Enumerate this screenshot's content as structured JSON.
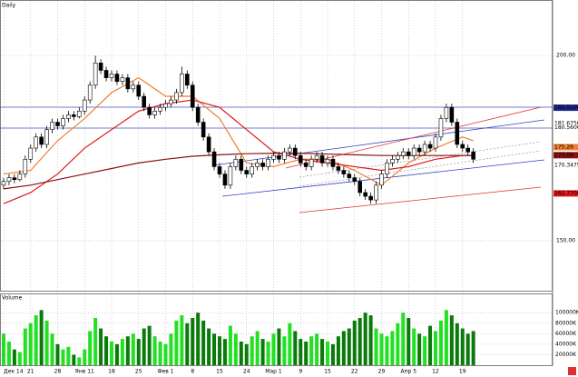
{
  "chart_data": {
    "type": "candlestick",
    "label": "Daily",
    "categories": [
      "Дек 14",
      null,
      null,
      null,
      null,
      "21",
      null,
      null,
      null,
      null,
      "28",
      null,
      null,
      null,
      null,
      "Янв 11",
      null,
      null,
      null,
      null,
      "18",
      null,
      null,
      null,
      null,
      "25",
      null,
      null,
      null,
      null,
      "Фев 1",
      null,
      null,
      null,
      null,
      "8",
      null,
      null,
      null,
      null,
      "15",
      null,
      null,
      null,
      null,
      "24",
      null,
      null,
      null,
      null,
      "Мар 1",
      null,
      null,
      null,
      null,
      "9",
      null,
      null,
      null,
      null,
      "15",
      null,
      null,
      null,
      null,
      "22",
      null,
      null,
      null,
      null,
      "29",
      null,
      null,
      null,
      null,
      "Апр 5",
      null,
      null,
      null,
      null,
      "12",
      null,
      null,
      null,
      null,
      "19",
      null,
      null
    ],
    "ohlc": [
      [
        165,
        167,
        164,
        166
      ],
      [
        166,
        168,
        165,
        167
      ],
      [
        167,
        168,
        165.5,
        166.5
      ],
      [
        166.5,
        169,
        166,
        168
      ],
      [
        168,
        173,
        167,
        172
      ],
      [
        172,
        176,
        171,
        175
      ],
      [
        175,
        179,
        174,
        178
      ],
      [
        178,
        179,
        175,
        176
      ],
      [
        176,
        181,
        175,
        180
      ],
      [
        180,
        183,
        179,
        182
      ],
      [
        182,
        183,
        180,
        181
      ],
      [
        181,
        184,
        180,
        183
      ],
      [
        183,
        185,
        182,
        184
      ],
      [
        184,
        185,
        182.5,
        183.5
      ],
      [
        183.5,
        186,
        183,
        185
      ],
      [
        185,
        189,
        184,
        188
      ],
      [
        188,
        193,
        187,
        192
      ],
      [
        192,
        200,
        191,
        198
      ],
      [
        198,
        199,
        195,
        196
      ],
      [
        196,
        197,
        193,
        194
      ],
      [
        194,
        196,
        193,
        195
      ],
      [
        195,
        196,
        192,
        193
      ],
      [
        193,
        195,
        192,
        194
      ],
      [
        194,
        195,
        190,
        191
      ],
      [
        191,
        193,
        190,
        192
      ],
      [
        192,
        193,
        188,
        189
      ],
      [
        189,
        190,
        185,
        186
      ],
      [
        186,
        187,
        183,
        184
      ],
      [
        184,
        186,
        183,
        185
      ],
      [
        185,
        187,
        184,
        186
      ],
      [
        186,
        188,
        185,
        187
      ],
      [
        187,
        189,
        186,
        188
      ],
      [
        188,
        191,
        187,
        190
      ],
      [
        190,
        197,
        189,
        195
      ],
      [
        195,
        196,
        191,
        192
      ],
      [
        192,
        193,
        185,
        186
      ],
      [
        186,
        187,
        181,
        182
      ],
      [
        182,
        183,
        177,
        178
      ],
      [
        178,
        179,
        173,
        174
      ],
      [
        174,
        175,
        169,
        170
      ],
      [
        170,
        171,
        167,
        168
      ],
      [
        168,
        169,
        164,
        165
      ],
      [
        165,
        171,
        164,
        170
      ],
      [
        170,
        173,
        169,
        172
      ],
      [
        172,
        173,
        168,
        169
      ],
      [
        169,
        170,
        167,
        168
      ],
      [
        168,
        171,
        167,
        170
      ],
      [
        170,
        172,
        169,
        171
      ],
      [
        171,
        172,
        169,
        170
      ],
      [
        170,
        173,
        169,
        172
      ],
      [
        172,
        174,
        171,
        173
      ],
      [
        173,
        174,
        171,
        172
      ],
      [
        172,
        175,
        171,
        174
      ],
      [
        174,
        176,
        173,
        175
      ],
      [
        175,
        176,
        172,
        173
      ],
      [
        173,
        174,
        170,
        171
      ],
      [
        171,
        172,
        169,
        170
      ],
      [
        170,
        173,
        169,
        172
      ],
      [
        172,
        174,
        171,
        173
      ],
      [
        173,
        174,
        170,
        171
      ],
      [
        171,
        173,
        170,
        172
      ],
      [
        172,
        173,
        169,
        170
      ],
      [
        170,
        171,
        168,
        169
      ],
      [
        169,
        170,
        167,
        168
      ],
      [
        168,
        169,
        166,
        167
      ],
      [
        167,
        168,
        165,
        166
      ],
      [
        166,
        167,
        162,
        163
      ],
      [
        163,
        164,
        161,
        162
      ],
      [
        162,
        163,
        160,
        161
      ],
      [
        161,
        166,
        160,
        165
      ],
      [
        165,
        169,
        164,
        168
      ],
      [
        168,
        172,
        167,
        171
      ],
      [
        171,
        173,
        170,
        172
      ],
      [
        172,
        174,
        171,
        173
      ],
      [
        173,
        175,
        172,
        174
      ],
      [
        174,
        175,
        172,
        173
      ],
      [
        173,
        176,
        172,
        175
      ],
      [
        175,
        176,
        173,
        174
      ],
      [
        174,
        177,
        173,
        176
      ],
      [
        176,
        177,
        174,
        175
      ],
      [
        175,
        179,
        174,
        178
      ],
      [
        178,
        184,
        177,
        183
      ],
      [
        183,
        187,
        182,
        186
      ],
      [
        186,
        187,
        181,
        182
      ],
      [
        182,
        183,
        175,
        176
      ],
      [
        176,
        177,
        174,
        175
      ],
      [
        175,
        176,
        173,
        174
      ],
      [
        174,
        175,
        171,
        172
      ]
    ],
    "up_color": "#ffffff",
    "down_color": "#000000",
    "ylim": [
      136.5,
      215
    ],
    "yticks": [
      {
        "value": 200,
        "label": "200.00"
      },
      {
        "value": 150,
        "label": "150.00"
      }
    ],
    "grid": true,
    "ma": [
      {
        "color": "#f08030",
        "x": [
          0,
          5,
          10,
          15,
          20,
          25,
          30,
          35,
          40,
          45,
          50,
          55,
          60,
          65,
          70,
          75,
          80,
          85,
          87
        ],
        "values": [
          168,
          169,
          177,
          183,
          190,
          194,
          189,
          189,
          183,
          171,
          170,
          172,
          172,
          169,
          165,
          171,
          175,
          178,
          177
        ]
      },
      {
        "color": "#e01818",
        "x": [
          0,
          5,
          10,
          15,
          20,
          25,
          30,
          35,
          40,
          45,
          50,
          55,
          60,
          65,
          70,
          75,
          80,
          85,
          87
        ],
        "values": [
          160,
          163,
          168,
          175,
          180,
          185,
          187,
          188,
          186,
          180,
          174,
          172,
          171,
          170,
          169,
          170,
          172,
          173,
          173
        ]
      },
      {
        "color": "#8b1010",
        "x": [
          0,
          5,
          10,
          15,
          20,
          25,
          30,
          35,
          40,
          45,
          50,
          55,
          60,
          65,
          70,
          75,
          80,
          85,
          87
        ],
        "values": [
          164,
          165,
          166.5,
          168,
          169.5,
          171,
          172,
          172.8,
          173.2,
          173.5,
          173.6,
          173.6,
          173.4,
          173.2,
          173,
          173,
          173,
          173,
          173
        ]
      }
    ],
    "badges": [
      {
        "value": 185.91,
        "label": "185.9100",
        "color": "#1a2a8a",
        "text_color": "#ffffff"
      },
      {
        "value": 181.675,
        "label": "181.6750",
        "color": "#ffffff",
        "text_color": "#1a2a8a"
      },
      {
        "value": 180.56,
        "label": "180.5600",
        "color": "#ffffff",
        "text_color": "#1a2a8a"
      },
      {
        "value": 175.26,
        "label": "175.26",
        "color": "#f08030",
        "text_color": "#ffffff"
      },
      {
        "value": 173.09,
        "label": "173.09",
        "color": "#8b1010",
        "text_color": "#ffffff"
      },
      {
        "value": 170.3475,
        "label": "170.3475",
        "color": "#ffffff",
        "text_color": "#1a2a8a"
      },
      {
        "value": 162.77,
        "label": "162.7700",
        "color": "#e01818",
        "text_color": "#ffffff"
      }
    ],
    "volume": {
      "title": "Volume",
      "values": [
        60000,
        45000,
        30000,
        25000,
        70000,
        80000,
        95000,
        105000,
        85000,
        60000,
        40000,
        30000,
        35000,
        20000,
        15000,
        30000,
        65000,
        90000,
        70000,
        55000,
        45000,
        40000,
        50000,
        55000,
        60000,
        50000,
        70000,
        75000,
        55000,
        45000,
        40000,
        60000,
        85000,
        95000,
        80000,
        90000,
        100000,
        85000,
        70000,
        60000,
        55000,
        50000,
        75000,
        60000,
        45000,
        40000,
        55000,
        65000,
        50000,
        45000,
        60000,
        70000,
        55000,
        80000,
        65000,
        50000,
        45000,
        55000,
        60000,
        50000,
        45000,
        40000,
        55000,
        65000,
        70000,
        85000,
        90000,
        100000,
        95000,
        70000,
        60000,
        55000,
        65000,
        80000,
        100000,
        90000,
        70000,
        60000,
        55000,
        75000,
        65000,
        85000,
        105000,
        95000,
        80000,
        70000,
        60000,
        65000
      ],
      "ylim": [
        0,
        135000
      ],
      "yticks": [
        {
          "value": 20000,
          "label": "20000K"
        },
        {
          "value": 40000,
          "label": "40000K"
        },
        {
          "value": 60000,
          "label": "60000K"
        },
        {
          "value": 80000,
          "label": "80000K"
        },
        {
          "value": 100000,
          "label": "100000K"
        }
      ],
      "up_color": "#22e022",
      "down_color": "#0a7a0a"
    }
  }
}
